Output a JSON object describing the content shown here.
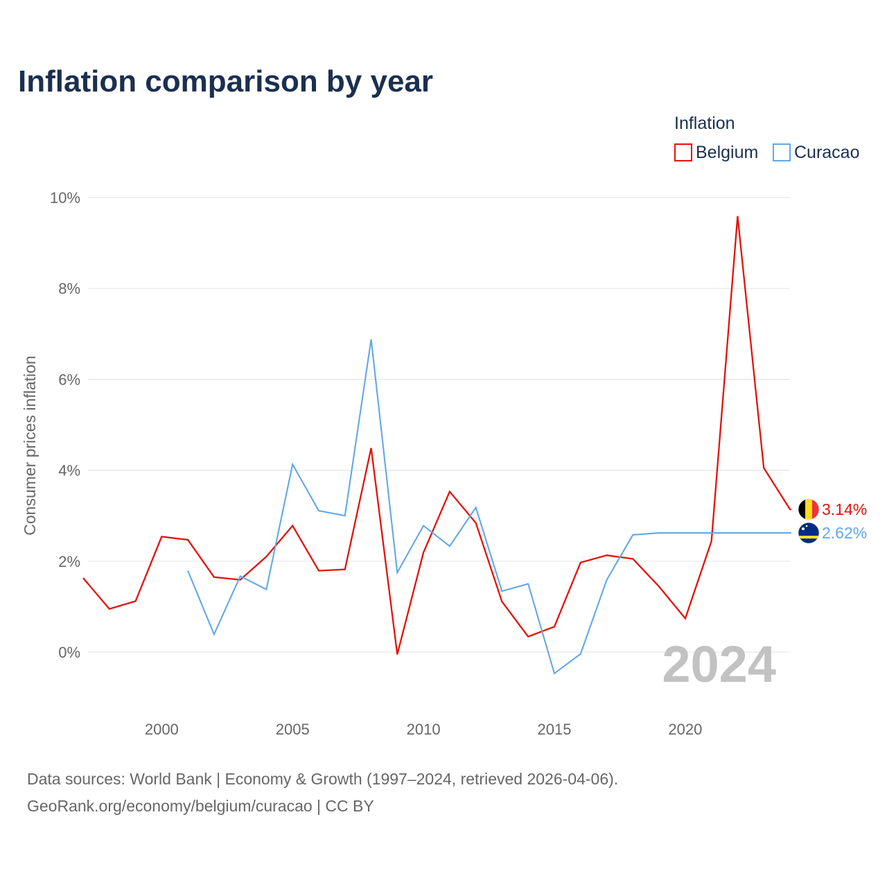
{
  "chart_data": {
    "type": "line",
    "title": "Inflation comparison by year",
    "legend_title": "Inflation",
    "legend_position": "top-right",
    "ylabel": "Consumer prices inflation",
    "xlabel": "",
    "xlim": [
      1997,
      2024
    ],
    "ylim": [
      -1.2,
      10.4
    ],
    "x_ticks": [
      {
        "value": 2000,
        "label": "2000"
      },
      {
        "value": 2005,
        "label": "2005"
      },
      {
        "value": 2010,
        "label": "2010"
      },
      {
        "value": 2015,
        "label": "2015"
      },
      {
        "value": 2020,
        "label": "2020"
      }
    ],
    "y_ticks": [
      {
        "value": 0,
        "label": "0%"
      },
      {
        "value": 2,
        "label": "2%"
      },
      {
        "value": 4,
        "label": "4%"
      },
      {
        "value": 6,
        "label": "6%"
      },
      {
        "value": 8,
        "label": "8%"
      },
      {
        "value": 10,
        "label": "10%"
      }
    ],
    "grid": true,
    "current_year": "2024",
    "series": [
      {
        "name": "Belgium",
        "color": "#e3120b",
        "end_label": "3.14%",
        "flag": "belgium-flag",
        "x": [
          1997,
          1998,
          1999,
          2000,
          2001,
          2002,
          2003,
          2004,
          2005,
          2006,
          2007,
          2008,
          2009,
          2010,
          2011,
          2012,
          2013,
          2014,
          2015,
          2016,
          2017,
          2018,
          2019,
          2020,
          2021,
          2022,
          2023,
          2024
        ],
        "values": [
          1.63,
          0.95,
          1.12,
          2.54,
          2.47,
          1.65,
          1.59,
          2.1,
          2.78,
          1.79,
          1.82,
          4.49,
          -0.05,
          2.19,
          3.53,
          2.84,
          1.11,
          0.34,
          0.56,
          1.97,
          2.13,
          2.05,
          1.44,
          0.74,
          2.44,
          9.59,
          4.05,
          3.14
        ]
      },
      {
        "name": "Curacao",
        "color": "#62a8e5",
        "end_label": "2.62%",
        "flag": "curacao-flag",
        "x": [
          2001,
          2002,
          2003,
          2004,
          2005,
          2006,
          2007,
          2008,
          2009,
          2010,
          2011,
          2012,
          2013,
          2014,
          2015,
          2016,
          2017,
          2018,
          2019,
          2020,
          2021,
          2022,
          2023,
          2024
        ],
        "values": [
          1.79,
          0.39,
          1.67,
          1.38,
          4.13,
          3.11,
          3.0,
          6.88,
          1.75,
          2.78,
          2.33,
          3.18,
          1.34,
          1.5,
          -0.47,
          -0.04,
          1.59,
          2.58,
          2.62,
          2.62,
          2.62,
          2.62,
          2.62,
          2.62
        ]
      }
    ]
  },
  "footer": {
    "source_line": "Data sources: World Bank | Economy & Growth (1997–2024, retrieved 2026-04-06).",
    "url_line": "GeoRank.org/economy/belgium/curacao | CC BY"
  }
}
